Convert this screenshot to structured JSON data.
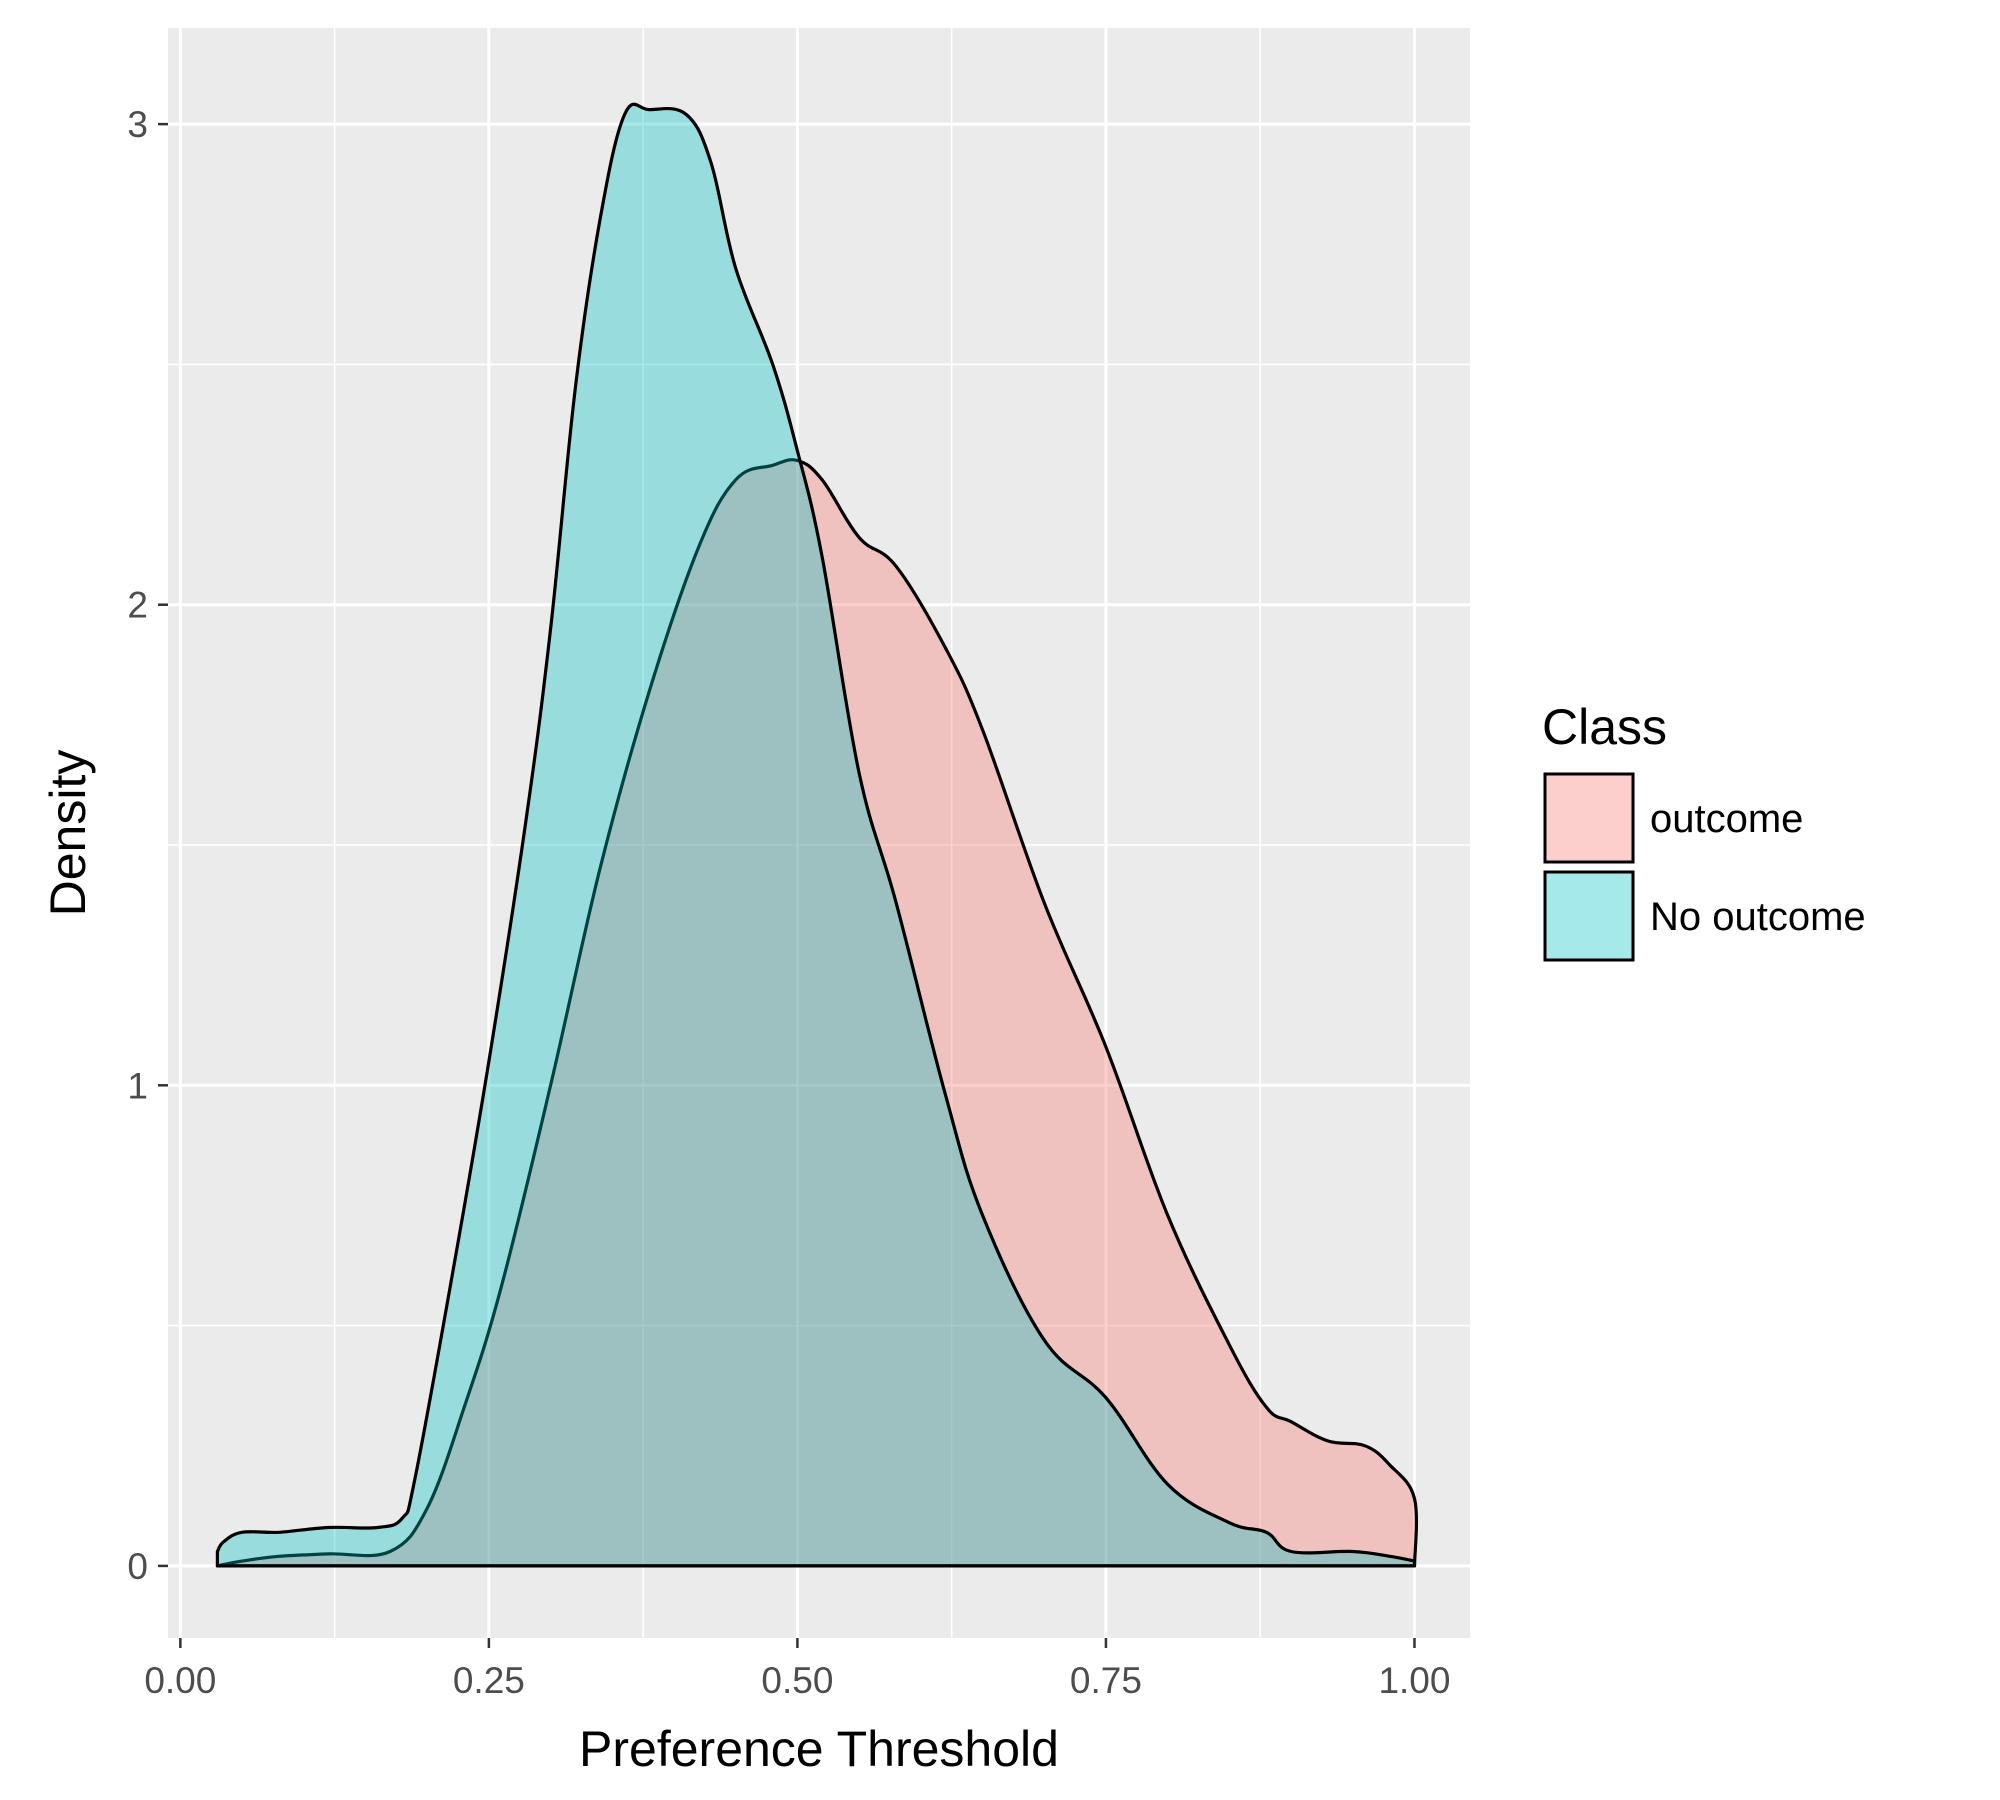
{
  "chart_data": {
    "type": "area",
    "subtype": "density",
    "xlabel": "Preference Threshold",
    "ylabel": "Density",
    "xlim": [
      -0.01,
      1.045
    ],
    "ylim": [
      -0.15,
      3.2
    ],
    "x_ticks": [
      0.0,
      0.25,
      0.5,
      0.75,
      1.0
    ],
    "x_tick_labels": [
      "0.00",
      "0.25",
      "0.50",
      "0.75",
      "1.00"
    ],
    "y_ticks": [
      0,
      1,
      2,
      3
    ],
    "y_tick_labels": [
      "0",
      "1",
      "2",
      "3"
    ],
    "grid": true,
    "panel_background": "#ebebeb",
    "legend": {
      "title": "Class",
      "position": "right",
      "entries": [
        {
          "label": "outcome",
          "color": "#f8766d"
        },
        {
          "label": "No outcome",
          "color": "#00bfc4"
        }
      ]
    },
    "series": [
      {
        "name": "outcome",
        "color": "#f8766d",
        "opacity": 0.35,
        "x": [
          0.03,
          0.05,
          0.08,
          0.12,
          0.17,
          0.2,
          0.23,
          0.26,
          0.3,
          0.34,
          0.38,
          0.42,
          0.45,
          0.48,
          0.5,
          0.52,
          0.55,
          0.58,
          0.62,
          0.65,
          0.7,
          0.75,
          0.8,
          0.85,
          0.88,
          0.9,
          0.93,
          0.96,
          0.98,
          1.0,
          1.0
        ],
        "y": [
          0.0,
          0.01,
          0.02,
          0.025,
          0.03,
          0.12,
          0.33,
          0.58,
          1.0,
          1.45,
          1.82,
          2.12,
          2.26,
          2.29,
          2.3,
          2.26,
          2.14,
          2.08,
          1.91,
          1.74,
          1.38,
          1.08,
          0.73,
          0.46,
          0.33,
          0.3,
          0.26,
          0.25,
          0.21,
          0.14,
          0.0
        ]
      },
      {
        "name": "No outcome",
        "color": "#00bfc4",
        "opacity": 0.35,
        "x": [
          0.03,
          0.035,
          0.05,
          0.08,
          0.12,
          0.16,
          0.18,
          0.19,
          0.22,
          0.25,
          0.28,
          0.3,
          0.32,
          0.34,
          0.36,
          0.38,
          0.41,
          0.43,
          0.45,
          0.48,
          0.5,
          0.52,
          0.55,
          0.58,
          0.62,
          0.65,
          0.7,
          0.75,
          0.8,
          0.85,
          0.88,
          0.9,
          0.95,
          0.98,
          1.0
        ],
        "y": [
          0.03,
          0.05,
          0.07,
          0.07,
          0.08,
          0.08,
          0.1,
          0.18,
          0.6,
          1.05,
          1.55,
          1.95,
          2.45,
          2.8,
          3.02,
          3.03,
          3.02,
          2.92,
          2.7,
          2.5,
          2.32,
          2.1,
          1.65,
          1.38,
          0.98,
          0.73,
          0.47,
          0.35,
          0.17,
          0.09,
          0.07,
          0.03,
          0.03,
          0.02,
          0.01
        ]
      }
    ]
  }
}
